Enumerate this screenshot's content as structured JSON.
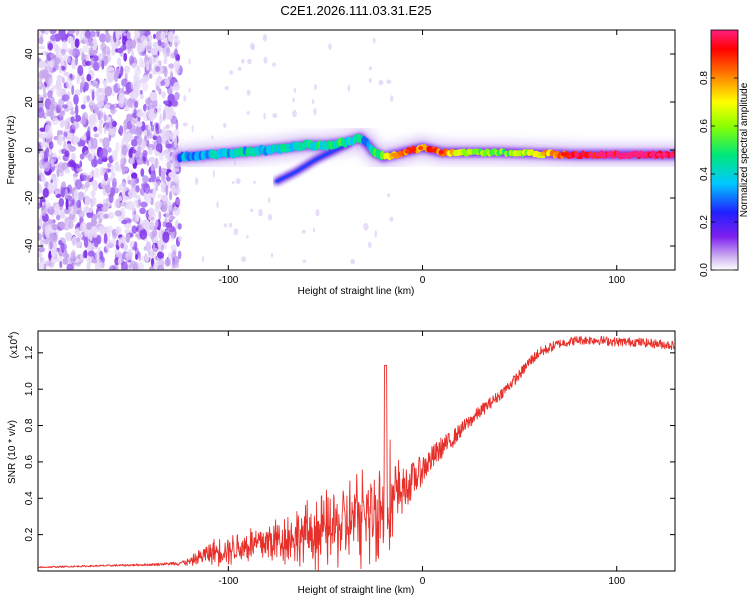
{
  "title": "C2E1.2026.111.03.31.E25",
  "chart_data": [
    {
      "type": "heatmap",
      "name": "spectrogram",
      "xlabel": "Height of straight line (km)",
      "ylabel": "Frequency (Hz)",
      "xlim": [
        -198,
        130
      ],
      "ylim": [
        -50,
        50
      ],
      "xticks": [
        -100,
        0,
        100
      ],
      "yticks": [
        -40,
        -20,
        0,
        20,
        40
      ],
      "xtick_labels": [
        "-100",
        "0",
        "100"
      ],
      "ytick_labels": [
        "-40",
        "-20",
        "0",
        "20",
        "40"
      ],
      "colorbar": {
        "label": "Normalized spectral amplitude",
        "range": [
          0,
          1
        ],
        "ticks": [
          0.0,
          0.2,
          0.4,
          0.6,
          0.8
        ],
        "tick_labels": [
          "0.0",
          "0.2",
          "0.4",
          "0.6",
          "0.8"
        ],
        "colormap": [
          "#ffffff",
          "#c9a8f0",
          "#7d1ff0",
          "#2020ff",
          "#00c8ff",
          "#00e87a",
          "#8cff00",
          "#ffff00",
          "#ff8c00",
          "#ff0000",
          "#ff2080"
        ]
      },
      "noise_region": {
        "x": [
          -198,
          -125
        ],
        "freq": [
          -50,
          50
        ]
      },
      "ridge": {
        "x": [
          -125,
          -110,
          -95,
          -80,
          -70,
          -60,
          -50,
          -40,
          -32,
          -28,
          -25,
          -20,
          -15,
          -10,
          -5,
          0,
          5,
          10,
          20,
          40,
          60,
          80,
          100,
          120,
          130
        ],
        "freq": [
          -3,
          -2,
          -1,
          0,
          1,
          2,
          2,
          3,
          5,
          2,
          -1,
          -3,
          -2,
          -1,
          0,
          1,
          0,
          -1,
          -1,
          -1,
          -1.5,
          -2,
          -2,
          -2,
          -2
        ],
        "amplitude": [
          0.35,
          0.35,
          0.38,
          0.4,
          0.4,
          0.42,
          0.45,
          0.45,
          0.4,
          0.35,
          0.45,
          0.6,
          0.75,
          0.8,
          0.85,
          0.8,
          0.85,
          0.85,
          0.6,
          0.55,
          0.7,
          0.95,
          0.98,
          0.98,
          0.95
        ]
      },
      "secondary_branch": {
        "x": [
          -75,
          -65,
          -55,
          -45,
          -38
        ],
        "freq": [
          -13,
          -9,
          -4,
          0,
          3
        ]
      }
    },
    {
      "type": "line",
      "name": "snr",
      "xlabel": "Height of straight line (km)",
      "ylabel": "SNR (10 * v/v)",
      "scale_label": "(x10",
      "scale_exponent": "4",
      "scale_suffix": ")",
      "xlim": [
        -198,
        130
      ],
      "ylim": [
        0,
        1.32
      ],
      "xticks": [
        -100,
        0,
        100
      ],
      "yticks": [
        0.2,
        0.4,
        0.6,
        0.8,
        1.0,
        1.2
      ],
      "xtick_labels": [
        "-100",
        "0",
        "100"
      ],
      "ytick_labels": [
        "0.2",
        "0.4",
        "0.6",
        "0.8",
        "1.0",
        "1.2"
      ],
      "color": "#e8302b",
      "series": [
        {
          "name": "SNR",
          "x": [
            -198,
            -180,
            -160,
            -140,
            -130,
            -120,
            -110,
            -100,
            -90,
            -80,
            -70,
            -60,
            -50,
            -40,
            -30,
            -25,
            -20,
            -19,
            -18,
            -15,
            -10,
            -5,
            0,
            5,
            10,
            15,
            20,
            30,
            40,
            50,
            55,
            60,
            70,
            80,
            90,
            100,
            110,
            120,
            130
          ],
          "y": [
            0.02,
            0.025,
            0.03,
            0.035,
            0.04,
            0.05,
            0.1,
            0.12,
            0.14,
            0.16,
            0.18,
            0.2,
            0.22,
            0.26,
            0.3,
            0.32,
            0.35,
            1.13,
            0.4,
            0.38,
            0.45,
            0.5,
            0.56,
            0.62,
            0.68,
            0.72,
            0.78,
            0.88,
            0.97,
            1.08,
            1.15,
            1.2,
            1.25,
            1.27,
            1.27,
            1.26,
            1.26,
            1.25,
            1.24
          ],
          "noise": [
            0.004,
            0.004,
            0.005,
            0.006,
            0.008,
            0.02,
            0.06,
            0.08,
            0.1,
            0.12,
            0.14,
            0.16,
            0.2,
            0.22,
            0.26,
            0.28,
            0.3,
            0.0,
            0.3,
            0.28,
            0.12,
            0.1,
            0.08,
            0.07,
            0.06,
            0.05,
            0.04,
            0.035,
            0.03,
            0.03,
            0.03,
            0.03,
            0.025,
            0.025,
            0.025,
            0.025,
            0.025,
            0.025,
            0.025
          ]
        }
      ]
    }
  ]
}
